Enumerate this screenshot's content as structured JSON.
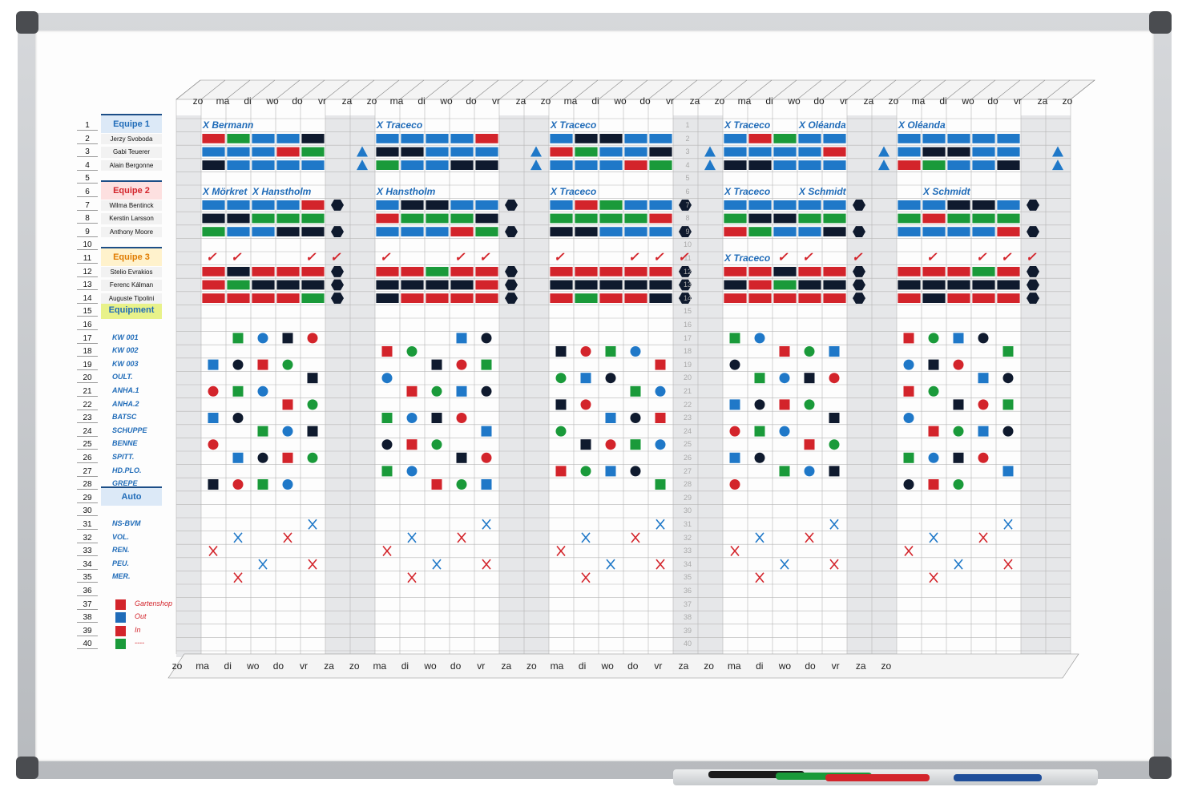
{
  "days_top": [
    "zo",
    "ma",
    "di",
    "wo",
    "do",
    "vr",
    "za",
    "zo",
    "ma",
    "di",
    "wo",
    "do",
    "vr",
    "za",
    "zo",
    "ma",
    "di",
    "wo",
    "do",
    "vr",
    "za",
    "zo",
    "ma",
    "di",
    "wo",
    "do",
    "vr",
    "za",
    "zo",
    "ma",
    "di",
    "wo",
    "do",
    "vr",
    "za",
    "zo"
  ],
  "days_bottom": [
    "zo",
    "ma",
    "di",
    "wo",
    "do",
    "vr",
    "za",
    "zo",
    "ma",
    "di",
    "wo",
    "do",
    "vr",
    "za",
    "zo",
    "ma",
    "di",
    "wo",
    "do",
    "vr",
    "za",
    "zo",
    "ma",
    "di",
    "wo",
    "do",
    "vr",
    "za",
    "zo"
  ],
  "teams": [
    {
      "label": "Equipe 1",
      "row": 1,
      "bg": "#dce9f7",
      "color": "#1f6bb8"
    },
    {
      "label": "Equipe 2",
      "row": 6,
      "bg": "#fde0e0",
      "color": "#d3242b"
    },
    {
      "label": "Equipe 3",
      "row": 11,
      "bg": "#fff2cc",
      "color": "#e07b00"
    },
    {
      "label": "Equipment",
      "row": 15,
      "bg": "#e8f28a",
      "color": "#1f6bb8"
    },
    {
      "label": "Auto",
      "row": 29,
      "bg": "#dce9f7",
      "color": "#1f6bb8"
    }
  ],
  "people": [
    {
      "name": "Jerzy Svoboda",
      "row": 2
    },
    {
      "name": "Gabi Teuerer",
      "row": 3
    },
    {
      "name": "Alain Bergonne",
      "row": 4
    },
    {
      "name": "Wilma Bentinck",
      "row": 7
    },
    {
      "name": "Kerstin Larsson",
      "row": 8
    },
    {
      "name": "Anthony Moore",
      "row": 9
    },
    {
      "name": "Stelio Evrakios",
      "row": 12
    },
    {
      "name": "Ferenc Kálman",
      "row": 13
    },
    {
      "name": "Auguste Tipolini",
      "row": 14
    }
  ],
  "equipment": [
    {
      "name": "KW 001",
      "row": 17
    },
    {
      "name": "KW 002",
      "row": 18
    },
    {
      "name": "KW 003",
      "row": 19
    },
    {
      "name": "OULT.",
      "row": 20
    },
    {
      "name": "ANHA.1",
      "row": 21
    },
    {
      "name": "ANHA.2",
      "row": 22
    },
    {
      "name": "BATSC",
      "row": 23
    },
    {
      "name": "SCHUPPE",
      "row": 24
    },
    {
      "name": "BENNE",
      "row": 25
    },
    {
      "name": "SPITT.",
      "row": 26
    },
    {
      "name": "HD.PLO.",
      "row": 27
    },
    {
      "name": "GREPE",
      "row": 28
    },
    {
      "name": "NS-BVM",
      "row": 31
    },
    {
      "name": "VOL.",
      "row": 32
    },
    {
      "name": "REN.",
      "row": 33
    },
    {
      "name": "PEU.",
      "row": 34
    },
    {
      "name": "MER.",
      "row": 35
    }
  ],
  "legend": [
    {
      "label": "Gartenshop",
      "row": 37,
      "color": "#d3242b"
    },
    {
      "label": "Out",
      "row": 38,
      "color": "#1f6bb8"
    },
    {
      "label": "In",
      "row": 39,
      "color": "#d3242b"
    },
    {
      "label": "----",
      "row": 40,
      "color": "#1a9a3a"
    }
  ],
  "row_numbers": [
    1,
    2,
    3,
    4,
    5,
    6,
    7,
    8,
    9,
    10,
    11,
    12,
    13,
    14,
    15,
    16,
    17,
    18,
    19,
    20,
    21,
    22,
    23,
    24,
    25,
    26,
    27,
    28,
    29,
    30,
    31,
    32,
    33,
    34,
    35,
    36,
    37,
    38,
    39,
    40
  ],
  "site_notes": [
    {
      "text": "Bermann",
      "block": 0,
      "row": 1
    },
    {
      "text": "Traceco",
      "block": 1,
      "row": 1
    },
    {
      "text": "Traceco",
      "block": 2,
      "row": 1
    },
    {
      "text": "Traceco",
      "block": 3,
      "row": 1
    },
    {
      "text": "Oléanda",
      "block": 3,
      "row": 1,
      "offset": 3
    },
    {
      "text": "Oléanda",
      "block": 4,
      "row": 1
    },
    {
      "text": "Mörkret",
      "block": 0,
      "row": 6
    },
    {
      "text": "Hanstholm",
      "block": 0,
      "row": 6,
      "offset": 2
    },
    {
      "text": "Hanstholm",
      "block": 1,
      "row": 6
    },
    {
      "text": "Traceco",
      "block": 2,
      "row": 6
    },
    {
      "text": "Traceco",
      "block": 3,
      "row": 6
    },
    {
      "text": "Schmidt",
      "block": 3,
      "row": 6,
      "offset": 3
    },
    {
      "text": "Schmidt",
      "block": 4,
      "row": 6,
      "offset": 1
    },
    {
      "text": "Traceco",
      "block": 3,
      "row": 11
    }
  ],
  "colors": {
    "blue": "#1f78c8",
    "red": "#d3242b",
    "black": "#0f1a2e",
    "green": "#1a9a3a",
    "navy": "#1c4e87"
  }
}
